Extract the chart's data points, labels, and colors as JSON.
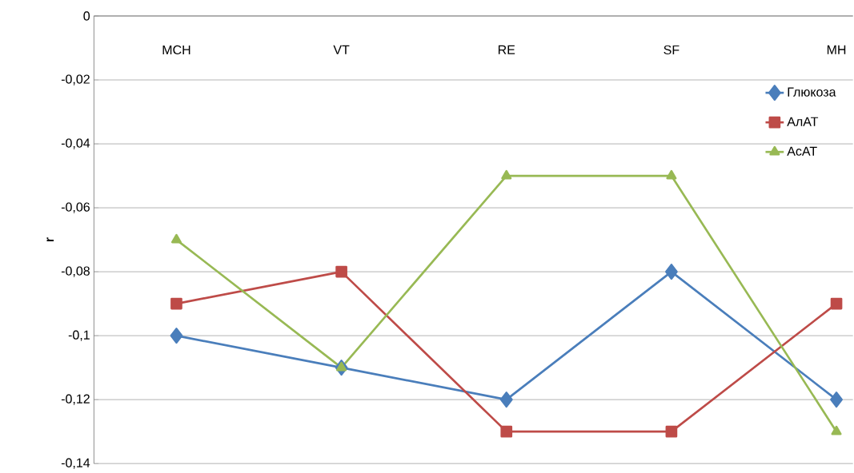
{
  "chart_data": {
    "type": "line",
    "ylabel": "r",
    "categories": [
      "MCH",
      "VT",
      "RE",
      "SF",
      "MH"
    ],
    "series": [
      {
        "name": "Глюкоза",
        "color": "#4a7ebb",
        "marker": "diamond",
        "values": [
          -0.1,
          -0.11,
          -0.12,
          -0.08,
          -0.12
        ]
      },
      {
        "name": "АлАТ",
        "color": "#be4b48",
        "marker": "square",
        "values": [
          -0.09,
          -0.08,
          -0.13,
          -0.13,
          -0.09
        ]
      },
      {
        "name": "АсАТ",
        "color": "#98b954",
        "marker": "triangle",
        "values": [
          -0.07,
          -0.11,
          -0.05,
          -0.05,
          -0.13
        ]
      }
    ],
    "ylim": [
      -0.14,
      0
    ],
    "yticks": [
      {
        "value": -0.14,
        "label": "-0,14"
      },
      {
        "value": -0.12,
        "label": "-0,12"
      },
      {
        "value": -0.1,
        "label": "-0,1"
      },
      {
        "value": -0.08,
        "label": "-0,08"
      },
      {
        "value": -0.06,
        "label": "-0,06"
      },
      {
        "value": -0.04,
        "label": "-0,04"
      },
      {
        "value": -0.02,
        "label": "-0,02"
      },
      0
    ],
    "grid": "y",
    "legend": "right",
    "line_style": "solid"
  }
}
